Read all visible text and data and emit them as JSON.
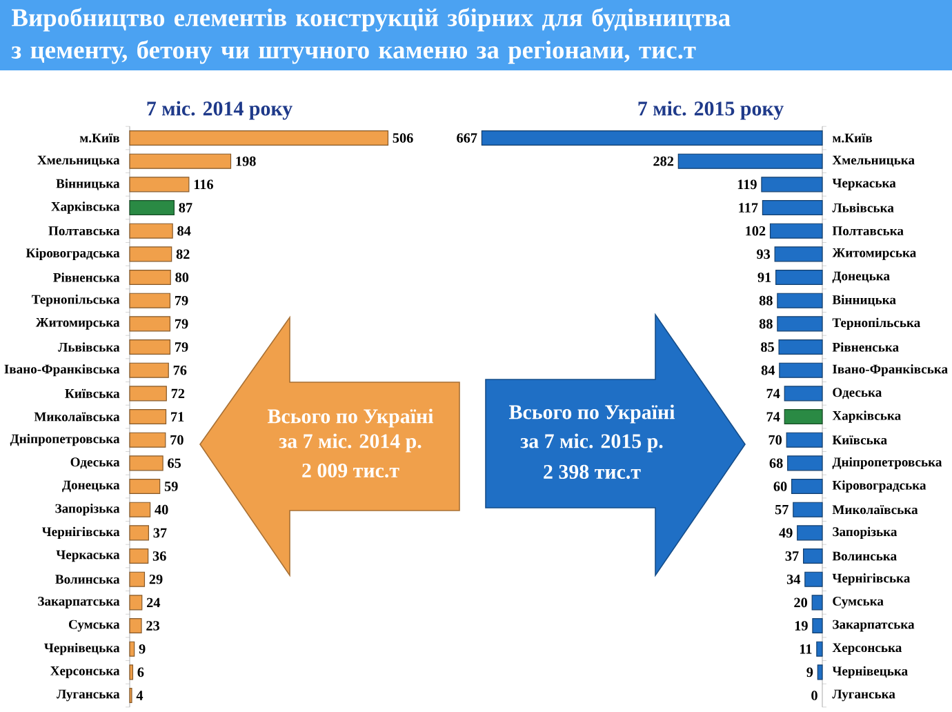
{
  "chart_data": [
    {
      "type": "bar",
      "title": "Виробництво елементів конструкцій збірних для будівництва з цементу, бетону чи штучного каменю за регіонами, тис.т",
      "subtitle": "7 міс. 2014 року",
      "orientation": "horizontal",
      "categories": [
        "м.Київ",
        "Хмельницька",
        "Вінницька",
        "Харківська",
        "Полтавська",
        "Кіровоградська",
        "Рівненська",
        "Тернопільська",
        "Житомирська",
        "Львівська",
        "Івано-Франківська",
        "Київська",
        "Миколаївська",
        "Дніпропетровська",
        "Одеська",
        "Донецька",
        "Запорізька",
        "Чернігівська",
        "Черкаська",
        "Волинська",
        "Закарпатська",
        "Сумська",
        "Чернівецька",
        "Херсонська",
        "Луганська"
      ],
      "values": [
        506,
        198,
        116,
        87,
        84,
        82,
        80,
        79,
        79,
        79,
        76,
        72,
        71,
        70,
        65,
        59,
        40,
        37,
        36,
        29,
        24,
        23,
        9,
        6,
        4
      ],
      "colors": [
        "#f0a04b",
        "#f0a04b",
        "#f0a04b",
        "#2a8a44",
        "#f0a04b",
        "#f0a04b",
        "#f0a04b",
        "#f0a04b",
        "#f0a04b",
        "#f0a04b",
        "#f0a04b",
        "#f0a04b",
        "#f0a04b",
        "#f0a04b",
        "#f0a04b",
        "#f0a04b",
        "#f0a04b",
        "#f0a04b",
        "#f0a04b",
        "#f0a04b",
        "#f0a04b",
        "#f0a04b",
        "#f0a04b",
        "#f0a04b",
        "#f0a04b"
      ],
      "xlim": [
        0,
        506
      ],
      "data_labels": true,
      "annotations": [
        "Всього по Україні",
        "за 7 міс. 2014 р.",
        "2 009 тис.т"
      ]
    },
    {
      "type": "bar",
      "title": "7 міс. 2015 року",
      "orientation": "horizontal",
      "categories": [
        "м.Київ",
        "Хмельницька",
        "Черкаська",
        "Львівська",
        "Полтавська",
        "Житомирська",
        "Донецька",
        "Вінницька",
        "Тернопільська",
        "Рівненська",
        "Івано-Франківська",
        "Одеська",
        "Харківська",
        "Київська",
        "Дніпропетровська",
        "Кіровоградська",
        "Миколаївська",
        "Запорізька",
        "Волинська",
        "Чернігівська",
        "Сумська",
        "Закарпатська",
        "Херсонська",
        "Чернівецька",
        "Луганська"
      ],
      "values": [
        667,
        282,
        119,
        117,
        102,
        93,
        91,
        88,
        88,
        85,
        84,
        74,
        74,
        70,
        68,
        60,
        57,
        49,
        37,
        34,
        20,
        19,
        11,
        9,
        0
      ],
      "colors": [
        "#1f6fc5",
        "#1f6fc5",
        "#1f6fc5",
        "#1f6fc5",
        "#1f6fc5",
        "#1f6fc5",
        "#1f6fc5",
        "#1f6fc5",
        "#1f6fc5",
        "#1f6fc5",
        "#1f6fc5",
        "#1f6fc5",
        "#2a8a44",
        "#1f6fc5",
        "#1f6fc5",
        "#1f6fc5",
        "#1f6fc5",
        "#1f6fc5",
        "#1f6fc5",
        "#1f6fc5",
        "#1f6fc5",
        "#1f6fc5",
        "#1f6fc5",
        "#1f6fc5",
        "#1f6fc5"
      ],
      "xlim": [
        667,
        0
      ],
      "data_labels": true,
      "annotations": [
        "Всього по Україні",
        "за 7 міс. 2015 р.",
        "2 398 тис.т"
      ]
    }
  ]
}
